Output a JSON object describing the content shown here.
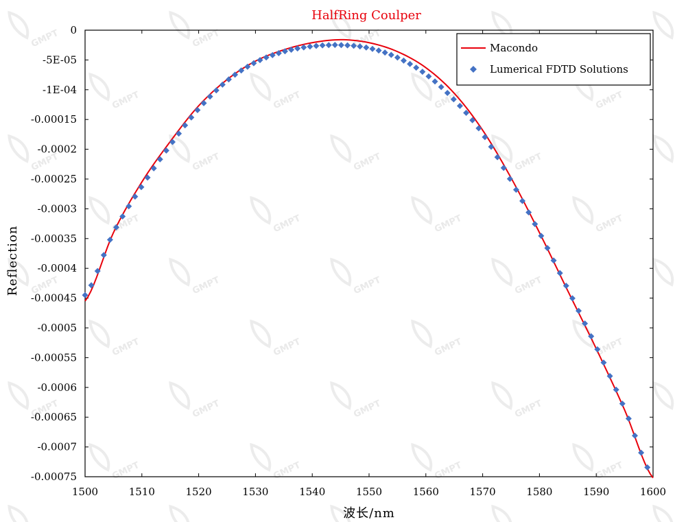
{
  "chart_data": {
    "type": "line",
    "title": "HalfRing Coulper",
    "title_color": "#e8000b",
    "xlabel": "波长/nm",
    "ylabel": "Reflection",
    "xlim": [
      1500,
      1600
    ],
    "ylim": [
      -0.00075,
      0
    ],
    "x_ticks": [
      1500,
      1510,
      1520,
      1530,
      1540,
      1550,
      1560,
      1570,
      1580,
      1590,
      1600
    ],
    "x_tick_labels": [
      "1500",
      "1510",
      "1520",
      "1530",
      "1540",
      "1550",
      "1560",
      "1570",
      "1580",
      "1590",
      "1600"
    ],
    "y_ticks": [
      0,
      -5e-05,
      -0.0001,
      -0.00015,
      -0.0002,
      -0.00025,
      -0.0003,
      -0.00035,
      -0.0004,
      -0.00045,
      -0.0005,
      -0.00055,
      -0.0006,
      -0.00065,
      -0.0007,
      -0.00075
    ],
    "y_tick_labels": [
      "0",
      "-5E-05",
      "-1E-04",
      "-0.00015",
      "-0.0002",
      "-0.00025",
      "-0.0003",
      "-0.00035",
      "-0.0004",
      "-0.00045",
      "-0.0005",
      "-0.00055",
      "-0.0006",
      "-0.00065",
      "-0.0007",
      "-0.00075"
    ],
    "grid": false,
    "legend_position": "top-right",
    "series": [
      {
        "name": "Macondo",
        "style": "line",
        "color": "#e8000b",
        "x": [
          1500,
          1505,
          1510,
          1515,
          1520,
          1525,
          1530,
          1535,
          1540,
          1545,
          1550,
          1555,
          1560,
          1565,
          1570,
          1575,
          1580,
          1585,
          1590,
          1595,
          1600
        ],
        "y": [
          -0.000455,
          -0.00034,
          -0.000255,
          -0.000187,
          -0.000127,
          -8.3e-05,
          -5.2e-05,
          -3.3e-05,
          -2.1e-05,
          -1.6e-05,
          -2.1e-05,
          -3.6e-05,
          -6.3e-05,
          -0.000106,
          -0.000168,
          -0.000248,
          -0.00034,
          -0.000438,
          -0.000535,
          -0.000638,
          -0.000752
        ]
      },
      {
        "name": "Lumerical FDTD Solutions",
        "style": "marker",
        "marker": "diamond",
        "color": "#4472c4",
        "x": [
          1500,
          1505,
          1510,
          1515,
          1520,
          1525,
          1530,
          1535,
          1540,
          1545,
          1550,
          1555,
          1560,
          1565,
          1570,
          1575,
          1580,
          1585,
          1590,
          1595,
          1600
        ],
        "y": [
          -0.000445,
          -0.00034,
          -0.000262,
          -0.000193,
          -0.000132,
          -8.5e-05,
          -5.4e-05,
          -3.6e-05,
          -2.7e-05,
          -2.5e-05,
          -3e-05,
          -4.6e-05,
          -7.4e-05,
          -0.000117,
          -0.000174,
          -0.000253,
          -0.00034,
          -0.000435,
          -0.000532,
          -0.000636,
          -0.00075
        ]
      }
    ]
  },
  "watermark": {
    "text": "GMPT"
  }
}
